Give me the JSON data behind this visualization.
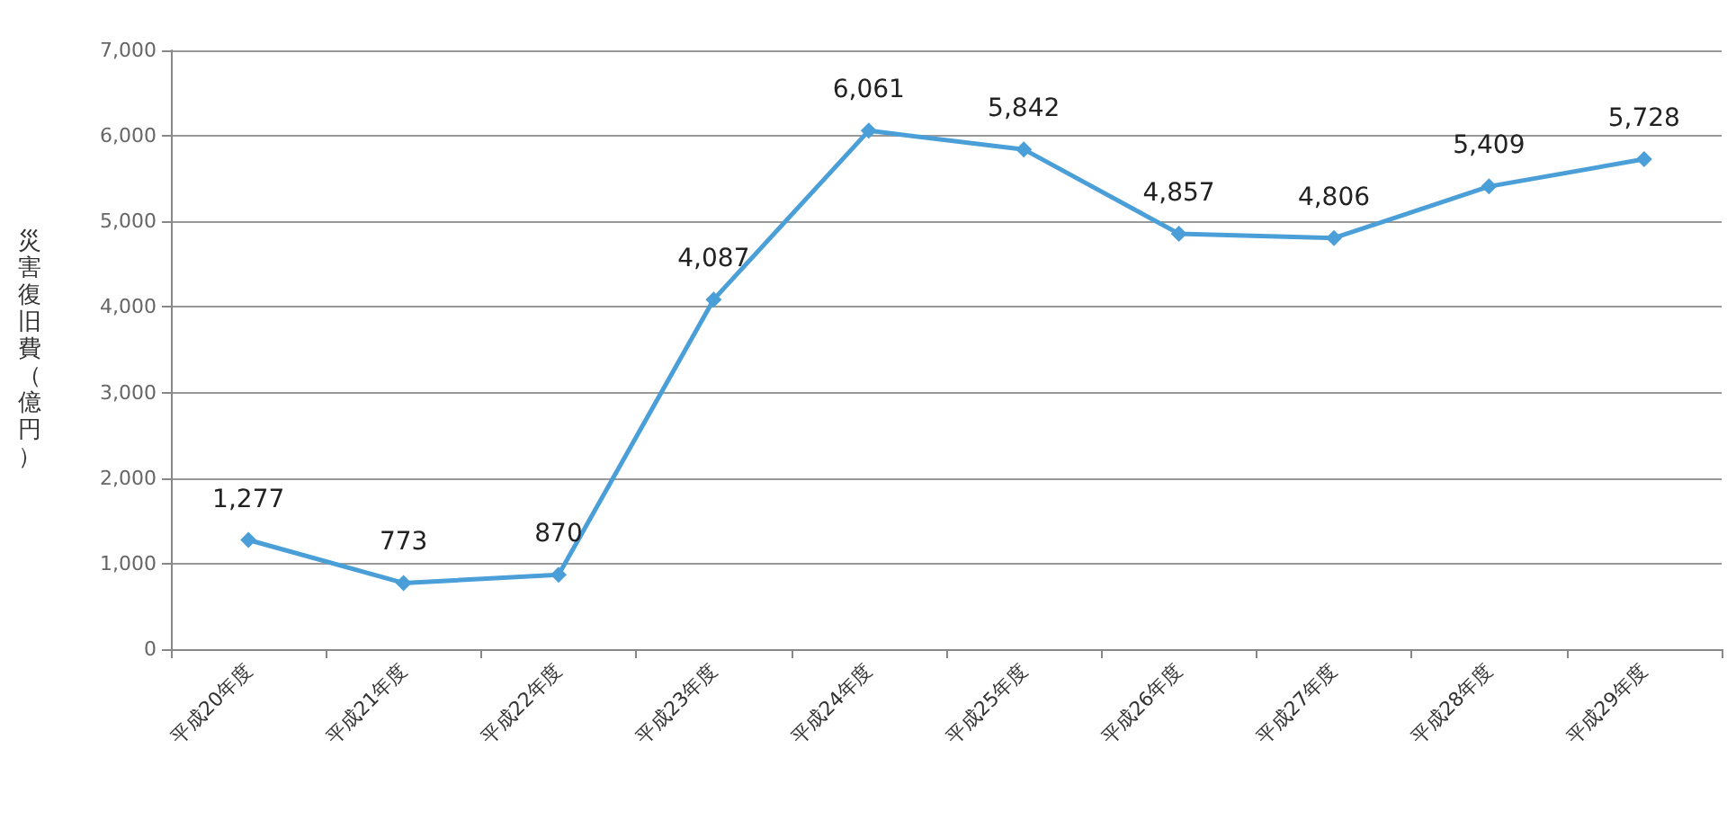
{
  "chart_data": {
    "type": "line",
    "ylabel": "災害復旧費（億円）",
    "categories": [
      "平成20年度",
      "平成21年度",
      "平成22年度",
      "平成23年度",
      "平成24年度",
      "平成25年度",
      "平成26年度",
      "平成27年度",
      "平成28年度",
      "平成29年度"
    ],
    "series": [
      {
        "color": "#4a9fd8",
        "values": [
          1277,
          773,
          870,
          4087,
          6061,
          5842,
          4857,
          4806,
          5409,
          5728
        ],
        "value_labels": [
          "1,277",
          "773",
          "870",
          "4,087",
          "6,061",
          "5,842",
          "4,857",
          "4,806",
          "5,409",
          "5,728"
        ]
      }
    ],
    "ylim": [
      0,
      7000
    ],
    "yticks": [
      0,
      {
        "value": 1000,
        "label": "1,000"
      },
      {
        "value": 2000,
        "label": "2,000"
      },
      {
        "value": 3000,
        "label": "3,000"
      },
      {
        "value": 4000,
        "label": "4,000"
      },
      {
        "value": 5000,
        "label": "5,000"
      },
      {
        "value": 6000,
        "label": "6,000"
      },
      {
        "value": 7000,
        "label": "7,000"
      }
    ],
    "grid": "y",
    "marker": "diamond",
    "line_style": "solid"
  }
}
